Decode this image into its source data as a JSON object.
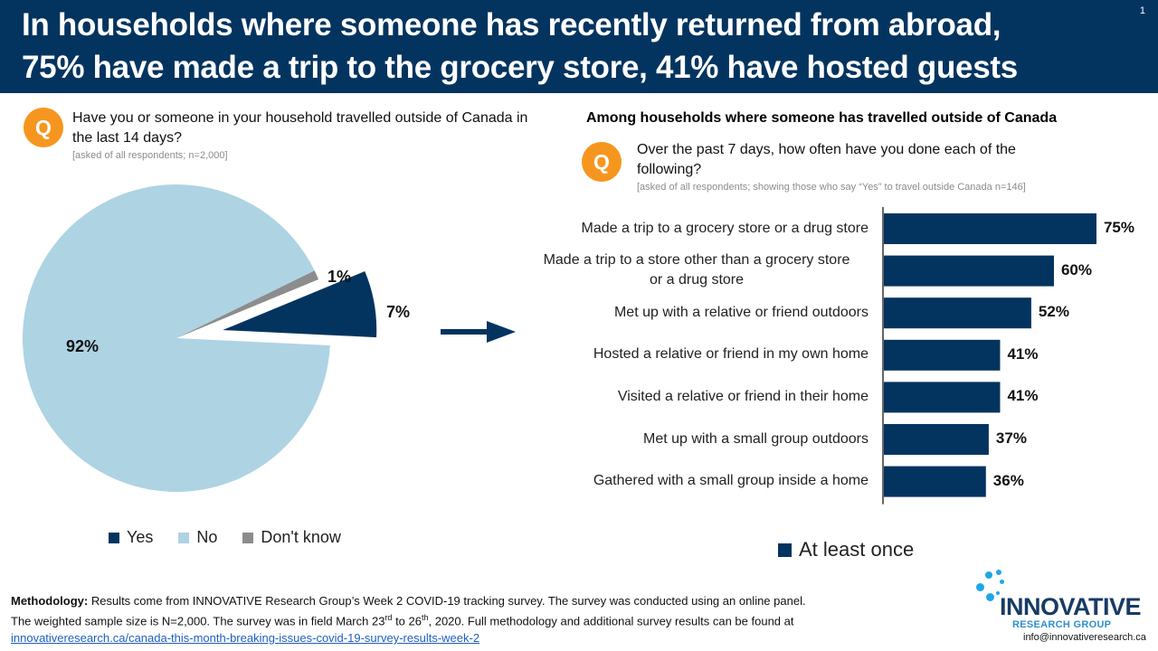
{
  "header": {
    "title_line1": "In households where someone has recently returned from abroad,",
    "title_line2": "75% have made a trip to the grocery store, 41% have hosted guests",
    "slide_number": "1",
    "background_color": "#03345f"
  },
  "left_question": {
    "icon": "Q",
    "text": "Have you or someone in your household travelled outside of Canada in the last 14 days?",
    "note": "[asked of all respondents;  n=2,000]"
  },
  "right_section": {
    "heading": "Among households  where someone has travelled outside of Canada",
    "icon": "Q",
    "question": "Over the past 7 days, how often have you done each of the following?",
    "note": "[asked of all respondents; showing  those who say “Yes” to travel outside Canada  n=146]"
  },
  "arrow_icon": "right-arrow-icon",
  "chart_data": [
    {
      "type": "pie",
      "title": "Have you or someone in your household travelled outside of Canada in the last 14 days?",
      "categories": [
        "Yes",
        "No",
        "Don't know"
      ],
      "values": [
        7,
        92,
        1
      ],
      "labels": [
        "7%",
        "92%",
        "1%"
      ],
      "colors": [
        "#03345f",
        "#aed3e3",
        "#8c8c8c"
      ],
      "exploded": [
        "Yes"
      ],
      "legend": {
        "position": "bottom",
        "entries": [
          "Yes",
          "No",
          "Don't know"
        ]
      }
    },
    {
      "type": "bar",
      "orientation": "horizontal",
      "title": "Over the past 7 days, how often have you done each of the following?",
      "categories": [
        "Made a trip to a grocery store or a drug store",
        "Made a trip to a store other than a grocery store or a drug store",
        "Met up with a relative or friend outdoors",
        "Hosted a relative or friend in my own home",
        "Visited a relative or friend in their home",
        "Met up with a small group outdoors",
        "Gathered with a small group inside a home"
      ],
      "category_lines": [
        [
          "Made a trip to a grocery store or a drug store"
        ],
        [
          "Made a trip to a store other than a grocery store",
          "or a drug store"
        ],
        [
          "Met up with a relative or friend outdoors"
        ],
        [
          "Hosted a relative or friend in my own home"
        ],
        [
          "Visited a relative or friend in their home"
        ],
        [
          "Met up with a small group outdoors"
        ],
        [
          "Gathered with a small group inside a home"
        ]
      ],
      "series": [
        {
          "name": "At least once",
          "values": [
            75,
            60,
            52,
            41,
            41,
            37,
            36
          ],
          "color": "#03345f"
        }
      ],
      "value_labels": [
        "75%",
        "60%",
        "52%",
        "41%",
        "41%",
        "37%",
        "36%"
      ],
      "xlim": [
        0,
        100
      ],
      "grid": false,
      "legend": {
        "position": "bottom",
        "entries": [
          "At least once"
        ]
      }
    }
  ],
  "legends": {
    "pie": [
      {
        "label": "Yes",
        "color": "#03345f"
      },
      {
        "label": "No",
        "color": "#aed3e3"
      },
      {
        "label": "Don't know",
        "color": "#8c8c8c"
      }
    ],
    "bar": {
      "label": "At least once",
      "color": "#03345f"
    }
  },
  "methodology": {
    "label": "Methodology:",
    "line1": " Results come from INNOVATIVE Research Group’s Week 2 COVID-19 tracking survey. The survey was conducted using an online panel.",
    "line2_a": "The weighted sample size is N=2,000. The survey was in field March 23",
    "sup1": "rd",
    "line2_b": " to 26",
    "sup2": "th",
    "line2_c": ", 2020. Full methodology and additional survey results can be found at",
    "link": "innovativeresearch.ca/canada-this-month-breaking-issues-covid-19-survey-results-week-2"
  },
  "logo": {
    "brand": "INNOVATIVE",
    "sub": "RESEARCH GROUP",
    "email": "info@innovativeresearch.ca"
  }
}
